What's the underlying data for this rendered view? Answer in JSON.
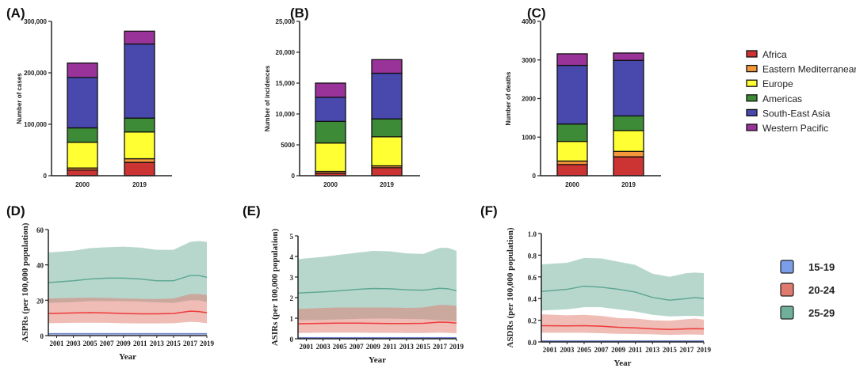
{
  "legend_regions": {
    "items": [
      "Africa",
      "Eastern Mediterranean",
      "Europe",
      "Americas",
      "South-East Asia",
      "Western Pacific"
    ],
    "colors": [
      "#cc3333",
      "#f5973a",
      "#ffff33",
      "#3d8b37",
      "#4848ad",
      "#993399"
    ]
  },
  "legend_ages": {
    "items": [
      "15-19",
      "20-24",
      "25-29"
    ],
    "colors": [
      "#7a9ee8",
      "#e07a6e",
      "#6fb09b"
    ]
  },
  "chart_data": [
    {
      "type": "bar",
      "stacked": true,
      "panel": "(A)",
      "ylabel": "Number of cases",
      "categories": [
        "2000",
        "2019"
      ],
      "ylim": [
        0,
        300000
      ],
      "yticks": [
        "0",
        "100,000",
        "200,000",
        "300,000"
      ],
      "series": [
        {
          "name": "Africa",
          "values": [
            11000,
            26000
          ]
        },
        {
          "name": "Eastern Mediterranean",
          "values": [
            4000,
            7000
          ]
        },
        {
          "name": "Europe",
          "values": [
            50000,
            52000
          ]
        },
        {
          "name": "Americas",
          "values": [
            28000,
            27000
          ]
        },
        {
          "name": "South-East Asia",
          "values": [
            98000,
            144000
          ]
        },
        {
          "name": "Western Pacific",
          "values": [
            28000,
            25000
          ]
        }
      ]
    },
    {
      "type": "bar",
      "stacked": true,
      "panel": "(B)",
      "ylabel": "Number of incidences",
      "categories": [
        "2000",
        "2019"
      ],
      "ylim": [
        0,
        25000
      ],
      "yticks": [
        "0",
        "5000",
        "10,000",
        "15,000",
        "20,000",
        "25,000"
      ],
      "series": [
        {
          "name": "Africa",
          "values": [
            400,
            1300
          ]
        },
        {
          "name": "Eastern Mediterranean",
          "values": [
            300,
            300
          ]
        },
        {
          "name": "Europe",
          "values": [
            4600,
            4700
          ]
        },
        {
          "name": "Americas",
          "values": [
            3500,
            2900
          ]
        },
        {
          "name": "South-East Asia",
          "values": [
            3900,
            7400
          ]
        },
        {
          "name": "Western Pacific",
          "values": [
            2300,
            2200
          ]
        }
      ]
    },
    {
      "type": "bar",
      "stacked": true,
      "panel": "(C)",
      "ylabel": "Number of deaths",
      "categories": [
        "2000",
        "2019"
      ],
      "ylim": [
        0,
        4000
      ],
      "yticks": [
        "0",
        "1000",
        "2000",
        "3000",
        "4000"
      ],
      "series": [
        {
          "name": "Africa",
          "values": [
            290,
            490
          ]
        },
        {
          "name": "Eastern Mediterranean",
          "values": [
            90,
            140
          ]
        },
        {
          "name": "Europe",
          "values": [
            510,
            540
          ]
        },
        {
          "name": "Americas",
          "values": [
            450,
            380
          ]
        },
        {
          "name": "South-East Asia",
          "values": [
            1520,
            1440
          ]
        },
        {
          "name": "Western Pacific",
          "values": [
            300,
            190
          ]
        }
      ]
    },
    {
      "type": "area",
      "panel": "(D)",
      "ylabel": "ASPRs (per 100,000 population)",
      "xlabel": "Year",
      "xlim": [
        2000,
        2019
      ],
      "xticks": [
        "2001",
        "2003",
        "2005",
        "2007",
        "2009",
        "2011",
        "2013",
        "2015",
        "2017",
        "2019"
      ],
      "ylim": [
        0,
        60
      ],
      "yticks": [
        "0",
        "20",
        "40",
        "60"
      ],
      "x": [
        2000,
        2003,
        2005,
        2007,
        2009,
        2011,
        2013,
        2015,
        2017,
        2018,
        2019
      ],
      "series": [
        {
          "name": "25-29",
          "mean": [
            30,
            31,
            32,
            32.5,
            32.5,
            32,
            31,
            31,
            34,
            34,
            33
          ],
          "upper": [
            47,
            48,
            49.5,
            50,
            50.3,
            49.8,
            48.5,
            48.5,
            53,
            53.5,
            53
          ],
          "lower": [
            18.5,
            19,
            19.5,
            19.5,
            19.5,
            19.2,
            18.8,
            18.5,
            20,
            20,
            19
          ]
        },
        {
          "name": "20-24",
          "mean": [
            12.5,
            12.8,
            13,
            12.8,
            12.5,
            12.3,
            12.3,
            12.5,
            13.8,
            13.6,
            13
          ],
          "upper": [
            21,
            21.3,
            21.5,
            21.3,
            21,
            20.8,
            20.7,
            21,
            23.5,
            23.5,
            23
          ],
          "lower": [
            7,
            7.2,
            7.3,
            7.2,
            7,
            6.9,
            6.9,
            7,
            7.8,
            7.6,
            7
          ]
        },
        {
          "name": "15-19",
          "mean": [
            1,
            1,
            1,
            1,
            1,
            1,
            1,
            1,
            1,
            1,
            1
          ],
          "upper": [
            1.5,
            1.5,
            1.5,
            1.5,
            1.5,
            1.5,
            1.5,
            1.5,
            1.5,
            1.5,
            1.5
          ],
          "lower": [
            0.5,
            0.5,
            0.5,
            0.5,
            0.5,
            0.5,
            0.5,
            0.5,
            0.5,
            0.5,
            0.5
          ]
        }
      ]
    },
    {
      "type": "area",
      "panel": "(E)",
      "ylabel": "ASIRs (per 100,000 population)",
      "xlabel": "Year",
      "xlim": [
        2000,
        2019
      ],
      "xticks": [
        "2001",
        "2003",
        "2005",
        "2007",
        "2009",
        "2011",
        "2013",
        "2015",
        "2017",
        "2019"
      ],
      "ylim": [
        0,
        5
      ],
      "yticks": [
        "0",
        "1",
        "2",
        "3",
        "4",
        "5"
      ],
      "x": [
        2000,
        2003,
        2005,
        2007,
        2009,
        2011,
        2013,
        2015,
        2017,
        2018,
        2019
      ],
      "series": [
        {
          "name": "25-29",
          "mean": [
            2.22,
            2.28,
            2.33,
            2.4,
            2.44,
            2.43,
            2.38,
            2.36,
            2.45,
            2.43,
            2.33
          ],
          "upper": [
            3.87,
            3.98,
            4.08,
            4.18,
            4.27,
            4.25,
            4.15,
            4.12,
            4.42,
            4.42,
            4.27
          ],
          "lower": [
            0.9,
            0.92,
            0.94,
            0.96,
            0.98,
            0.98,
            0.96,
            0.95,
            0.9,
            0.88,
            0.85
          ]
        },
        {
          "name": "20-24",
          "mean": [
            0.73,
            0.75,
            0.76,
            0.76,
            0.75,
            0.74,
            0.74,
            0.75,
            0.81,
            0.8,
            0.76
          ],
          "upper": [
            1.45,
            1.5,
            1.52,
            1.52,
            1.52,
            1.52,
            1.5,
            1.52,
            1.65,
            1.64,
            1.6
          ],
          "lower": [
            0.28,
            0.3,
            0.3,
            0.3,
            0.29,
            0.29,
            0.28,
            0.28,
            0.3,
            0.29,
            0.27
          ]
        },
        {
          "name": "15-19",
          "mean": [
            0.05,
            0.05,
            0.05,
            0.05,
            0.05,
            0.05,
            0.05,
            0.05,
            0.05,
            0.05,
            0.05
          ],
          "upper": [
            0.08,
            0.08,
            0.08,
            0.08,
            0.08,
            0.08,
            0.08,
            0.08,
            0.08,
            0.08,
            0.08
          ],
          "lower": [
            0.02,
            0.02,
            0.02,
            0.02,
            0.02,
            0.02,
            0.02,
            0.02,
            0.02,
            0.02,
            0.02
          ]
        }
      ]
    },
    {
      "type": "area",
      "panel": "(F)",
      "ylabel": "ASDRs (per 100,000 population)",
      "xlabel": "Year",
      "xlim": [
        2000,
        2019
      ],
      "xticks": [
        "2001",
        "2003",
        "2005",
        "2007",
        "2009",
        "2011",
        "2013",
        "2015",
        "2017",
        "2019"
      ],
      "ylim": [
        0,
        1
      ],
      "yticks": [
        "0.0",
        "0.2",
        "0.4",
        "0.6",
        "0.8",
        "1.0"
      ],
      "x": [
        2000,
        2003,
        2005,
        2007,
        2009,
        2011,
        2013,
        2015,
        2017,
        2018,
        2019
      ],
      "series": [
        {
          "name": "25-29",
          "mean": [
            0.465,
            0.485,
            0.515,
            0.505,
            0.485,
            0.46,
            0.41,
            0.385,
            0.4,
            0.41,
            0.4
          ],
          "upper": [
            0.715,
            0.73,
            0.775,
            0.77,
            0.74,
            0.71,
            0.63,
            0.6,
            0.635,
            0.64,
            0.635
          ],
          "lower": [
            0.29,
            0.3,
            0.32,
            0.32,
            0.3,
            0.28,
            0.25,
            0.235,
            0.24,
            0.24,
            0.235
          ]
        },
        {
          "name": "20-24",
          "mean": [
            0.15,
            0.148,
            0.15,
            0.145,
            0.135,
            0.13,
            0.12,
            0.115,
            0.12,
            0.122,
            0.12
          ],
          "upper": [
            0.255,
            0.245,
            0.25,
            0.24,
            0.22,
            0.215,
            0.2,
            0.195,
            0.21,
            0.215,
            0.205
          ],
          "lower": [
            0.085,
            0.085,
            0.085,
            0.08,
            0.075,
            0.073,
            0.07,
            0.065,
            0.068,
            0.068,
            0.065
          ]
        },
        {
          "name": "15-19",
          "mean": [
            0.008,
            0.008,
            0.008,
            0.008,
            0.008,
            0.008,
            0.008,
            0.008,
            0.008,
            0.008,
            0.008
          ],
          "upper": [
            0.015,
            0.015,
            0.015,
            0.015,
            0.015,
            0.015,
            0.015,
            0.015,
            0.015,
            0.015,
            0.015
          ],
          "lower": [
            0.003,
            0.003,
            0.003,
            0.003,
            0.003,
            0.003,
            0.003,
            0.003,
            0.003,
            0.003,
            0.003
          ]
        }
      ]
    }
  ]
}
